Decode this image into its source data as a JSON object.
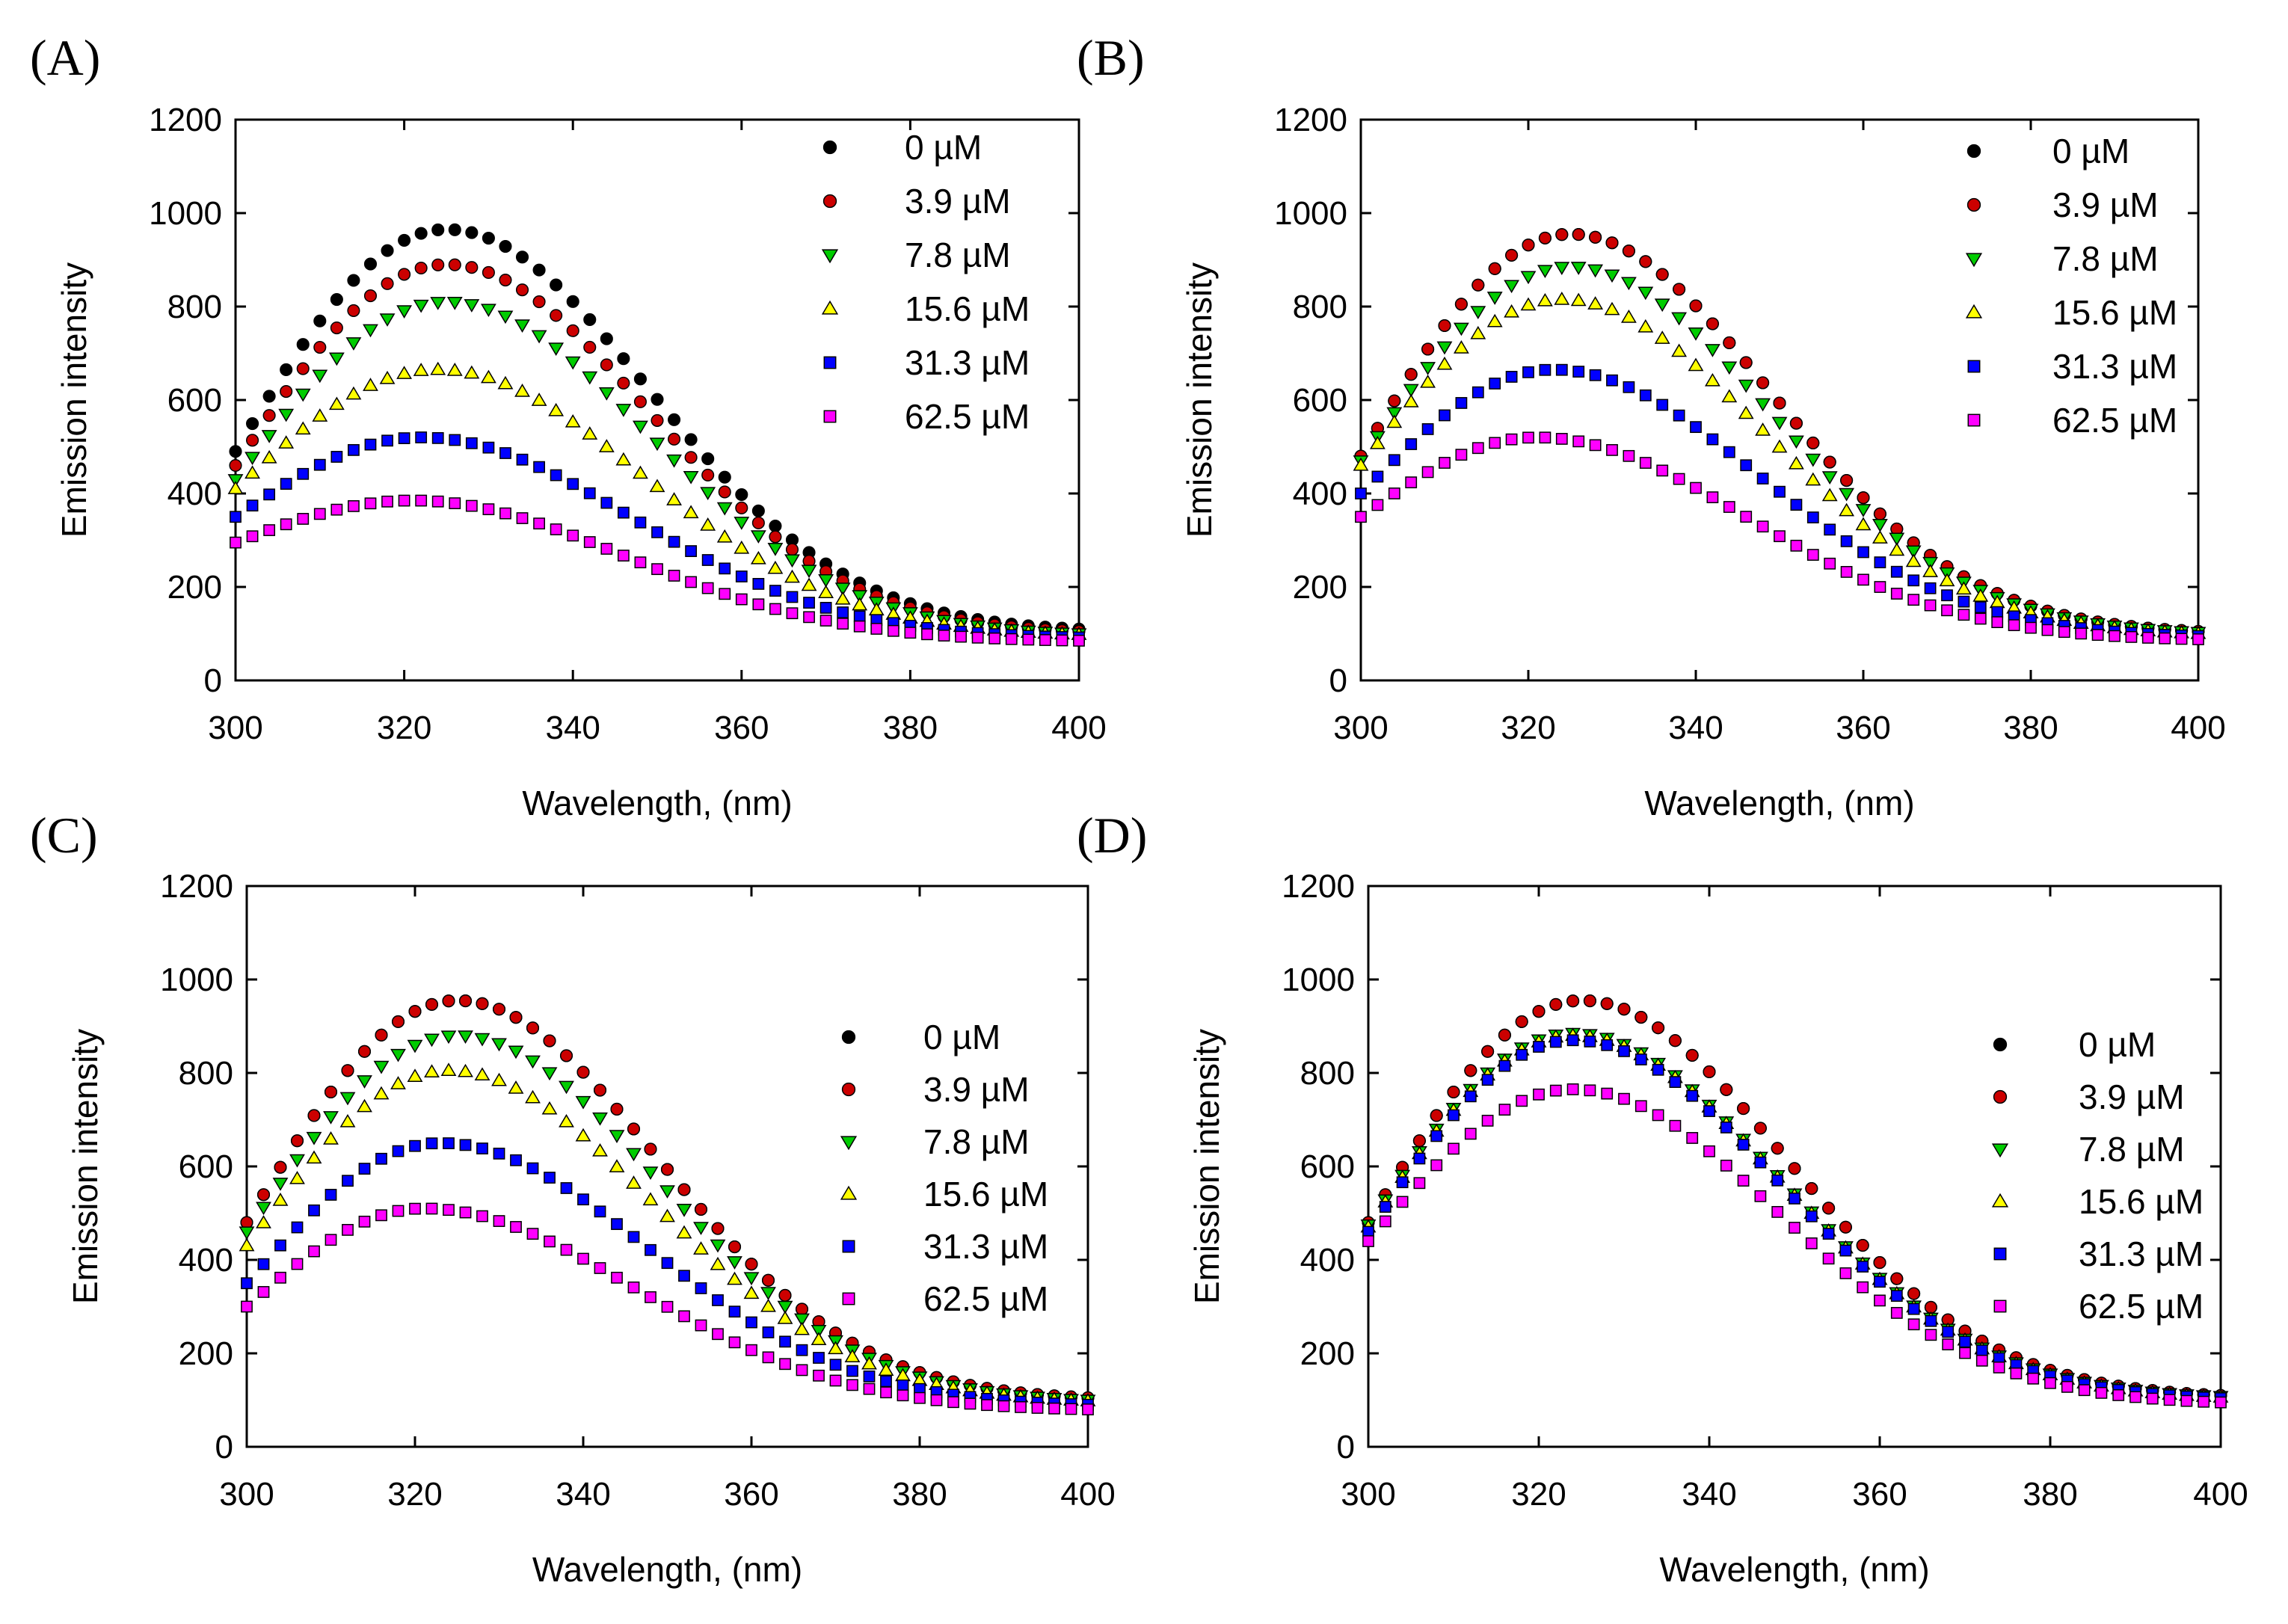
{
  "colors": {
    "s0": "#000000",
    "s1": "#cc0000",
    "s2": "#00cc00",
    "s3": "#ffff00",
    "s4": "#0000ff",
    "s5": "#ff00ff"
  },
  "chart_data": [
    {
      "panel": "(A)",
      "type": "scatter",
      "xlabel": "Wavelength, (nm)",
      "ylabel": "Emission intensity",
      "xlim": [
        300,
        400
      ],
      "ylim": [
        0,
        1200
      ],
      "xticks": [
        300,
        320,
        340,
        360,
        380,
        400
      ],
      "yticks": [
        0,
        200,
        400,
        600,
        800,
        1000,
        1200
      ],
      "legend_position": "top-right",
      "series": [
        {
          "name": "0 µM",
          "marker": "circle",
          "color": "#000000",
          "peak": 965,
          "peak_x": 325,
          "start": 490,
          "end": 110
        },
        {
          "name": "3.9 µM",
          "marker": "circle",
          "color": "#cc0000",
          "peak": 890,
          "peak_x": 325,
          "start": 460,
          "end": 105
        },
        {
          "name": "7.8 µM",
          "marker": "triangle-down",
          "color": "#00cc00",
          "peak": 810,
          "peak_x": 325,
          "start": 430,
          "end": 100
        },
        {
          "name": "15.6 µM",
          "marker": "triangle-up",
          "color": "#ffff00",
          "peak": 665,
          "peak_x": 324,
          "start": 410,
          "end": 98
        },
        {
          "name": "31.3 µM",
          "marker": "square",
          "color": "#0000ff",
          "peak": 520,
          "peak_x": 322,
          "start": 350,
          "end": 92
        },
        {
          "name": "62.5 µM",
          "marker": "square",
          "color": "#ff00ff",
          "peak": 385,
          "peak_x": 321,
          "start": 295,
          "end": 85
        }
      ]
    },
    {
      "panel": "(B)",
      "type": "scatter",
      "xlabel": "Wavelength, (nm)",
      "ylabel": "Emission intensity",
      "xlim": [
        300,
        400
      ],
      "ylim": [
        0,
        1200
      ],
      "xticks": [
        300,
        320,
        340,
        360,
        380,
        400
      ],
      "yticks": [
        0,
        200,
        400,
        600,
        800,
        1000,
        1200
      ],
      "legend_position": "top-right",
      "series": [
        {
          "name": "0 µM",
          "marker": "circle",
          "color": "#000000",
          "peak": 955,
          "peak_x": 325,
          "start": 480,
          "end": 105
        },
        {
          "name": "3.9 µM",
          "marker": "circle",
          "color": "#cc0000",
          "peak": 955,
          "peak_x": 325,
          "start": 480,
          "end": 105
        },
        {
          "name": "7.8 µM",
          "marker": "triangle-down",
          "color": "#00cc00",
          "peak": 885,
          "peak_x": 325,
          "start": 470,
          "end": 103
        },
        {
          "name": "15.6 µM",
          "marker": "triangle-up",
          "color": "#ffff00",
          "peak": 815,
          "peak_x": 324,
          "start": 460,
          "end": 100
        },
        {
          "name": "31.3 µM",
          "marker": "square",
          "color": "#0000ff",
          "peak": 665,
          "peak_x": 323,
          "start": 400,
          "end": 95
        },
        {
          "name": "62.5 µM",
          "marker": "square",
          "color": "#ff00ff",
          "peak": 520,
          "peak_x": 321,
          "start": 350,
          "end": 88
        }
      ]
    },
    {
      "panel": "(C)",
      "type": "scatter",
      "xlabel": "Wavelength, (nm)",
      "ylabel": "Emission intensity",
      "xlim": [
        300,
        400
      ],
      "ylim": [
        0,
        1200
      ],
      "xticks": [
        300,
        320,
        340,
        360,
        380,
        400
      ],
      "yticks": [
        0,
        200,
        400,
        600,
        800,
        1000,
        1200
      ],
      "legend_position": "right",
      "series": [
        {
          "name": "0 µM",
          "marker": "circle",
          "color": "#000000",
          "peak": 955,
          "peak_x": 325,
          "start": 480,
          "end": 105
        },
        {
          "name": "3.9 µM",
          "marker": "circle",
          "color": "#cc0000",
          "peak": 955,
          "peak_x": 325,
          "start": 480,
          "end": 105
        },
        {
          "name": "7.8 µM",
          "marker": "triangle-down",
          "color": "#00cc00",
          "peak": 880,
          "peak_x": 325,
          "start": 460,
          "end": 100
        },
        {
          "name": "15.6 µM",
          "marker": "triangle-up",
          "color": "#ffff00",
          "peak": 805,
          "peak_x": 324,
          "start": 430,
          "end": 98
        },
        {
          "name": "31.3 µM",
          "marker": "square",
          "color": "#0000ff",
          "peak": 650,
          "peak_x": 323,
          "start": 350,
          "end": 90
        },
        {
          "name": "62.5 µM",
          "marker": "square",
          "color": "#ff00ff",
          "peak": 510,
          "peak_x": 321,
          "start": 300,
          "end": 80
        }
      ]
    },
    {
      "panel": "(D)",
      "type": "scatter",
      "xlabel": "Wavelength, (nm)",
      "ylabel": "Emission intensity",
      "xlim": [
        300,
        400
      ],
      "ylim": [
        0,
        1200
      ],
      "xticks": [
        300,
        320,
        340,
        360,
        380,
        400
      ],
      "yticks": [
        0,
        200,
        400,
        600,
        800,
        1000,
        1200
      ],
      "legend_position": "right",
      "series": [
        {
          "name": "0 µM",
          "marker": "circle",
          "color": "#000000",
          "peak": 955,
          "peak_x": 325,
          "start": 480,
          "end": 110
        },
        {
          "name": "3.9 µM",
          "marker": "circle",
          "color": "#cc0000",
          "peak": 955,
          "peak_x": 325,
          "start": 480,
          "end": 110
        },
        {
          "name": "7.8 µM",
          "marker": "triangle-down",
          "color": "#00cc00",
          "peak": 885,
          "peak_x": 324,
          "start": 475,
          "end": 108
        },
        {
          "name": "15.6 µM",
          "marker": "triangle-up",
          "color": "#ffff00",
          "peak": 880,
          "peak_x": 324,
          "start": 470,
          "end": 106
        },
        {
          "name": "31.3 µM",
          "marker": "square",
          "color": "#0000ff",
          "peak": 870,
          "peak_x": 324,
          "start": 460,
          "end": 104
        },
        {
          "name": "62.5 µM",
          "marker": "square",
          "color": "#ff00ff",
          "peak": 765,
          "peak_x": 324,
          "start": 440,
          "end": 95
        }
      ]
    }
  ]
}
